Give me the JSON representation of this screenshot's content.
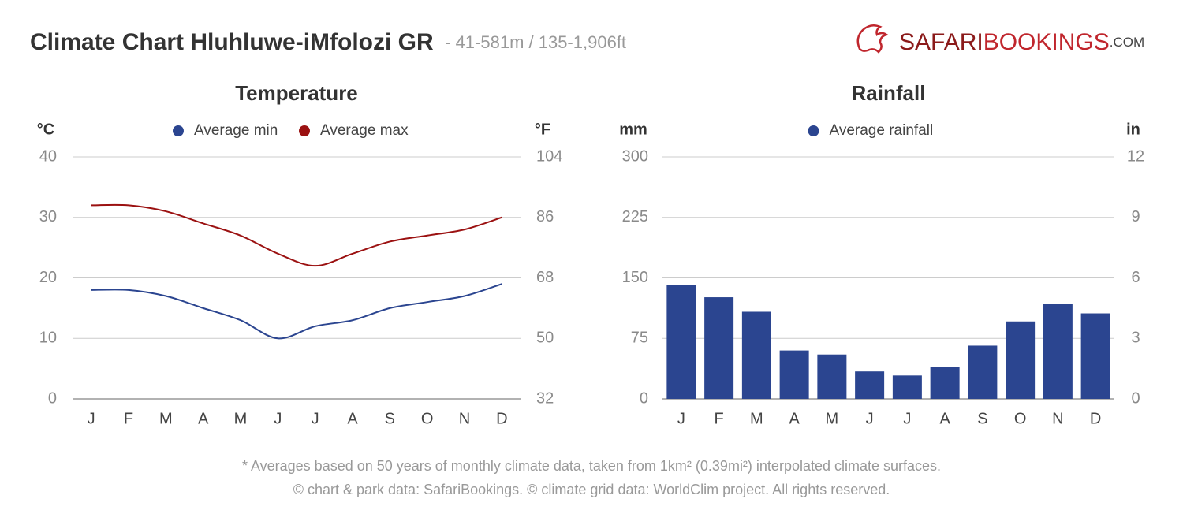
{
  "header": {
    "title": "Climate Chart Hluhluwe-iMfolozi GR",
    "subtitle": "- 41-581m / 135-1,906ft"
  },
  "logo": {
    "part1": "SAFARI",
    "part2": "BOOKINGS",
    "part3": ".COM"
  },
  "chart_data": [
    {
      "type": "line",
      "title": "Temperature",
      "y_label": "°C",
      "y2_label": "°F",
      "categories": [
        "J",
        "F",
        "M",
        "A",
        "M",
        "J",
        "J",
        "A",
        "S",
        "O",
        "N",
        "D"
      ],
      "series": [
        {
          "name": "Average min",
          "color": "#2b4590",
          "values": [
            18,
            18,
            17,
            15,
            13,
            10,
            12,
            13,
            15,
            16,
            17,
            19
          ]
        },
        {
          "name": "Average max",
          "color": "#9b1111",
          "values": [
            32,
            32,
            31,
            29,
            27,
            24,
            22,
            24,
            26,
            27,
            28,
            30
          ]
        }
      ],
      "ylim": [
        0,
        40
      ],
      "yticks": [
        0,
        10,
        20,
        30,
        40
      ],
      "y2lim": [
        32,
        104
      ],
      "y2ticks": [
        32,
        50,
        68,
        86,
        104
      ],
      "grid": true
    },
    {
      "type": "bar",
      "title": "Rainfall",
      "y_label": "mm",
      "y2_label": "in",
      "categories": [
        "J",
        "F",
        "M",
        "A",
        "M",
        "J",
        "J",
        "A",
        "S",
        "O",
        "N",
        "D"
      ],
      "series": [
        {
          "name": "Average rainfall",
          "color": "#2b4590",
          "values": [
            141,
            126,
            108,
            60,
            55,
            34,
            29,
            40,
            66,
            96,
            118,
            106
          ]
        }
      ],
      "ylim": [
        0,
        300
      ],
      "yticks": [
        0,
        75,
        150,
        225,
        300
      ],
      "y2lim": [
        0,
        12
      ],
      "y2ticks": [
        0,
        3,
        6,
        9,
        12
      ],
      "grid": true
    }
  ],
  "footer": {
    "notes": [
      "* Averages based on 50 years of monthly climate data, taken from 1km² (0.39mi²) interpolated climate surfaces.",
      "© chart & park data: SafariBookings. © climate grid data: WorldClim project. All rights reserved."
    ]
  }
}
